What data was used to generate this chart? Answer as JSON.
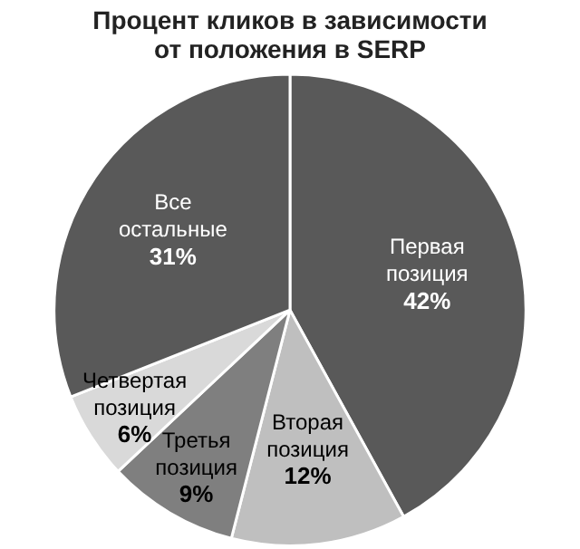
{
  "chart_data": {
    "type": "pie",
    "title": "Процент кликов в зависимости от положения в SERP",
    "categories": [
      "Первая позиция",
      "Вторая позиция",
      "Третья позиция",
      "Четвертая позиция",
      "Все остальные"
    ],
    "values": [
      42,
      12,
      9,
      6,
      31
    ],
    "colors": [
      "#595959",
      "#bfbfbf",
      "#7f7f7f",
      "#d9d9d9",
      "#595959"
    ],
    "value_labels": [
      "42%",
      "12%",
      "9%",
      "6%",
      "31%"
    ],
    "legend": false
  }
}
